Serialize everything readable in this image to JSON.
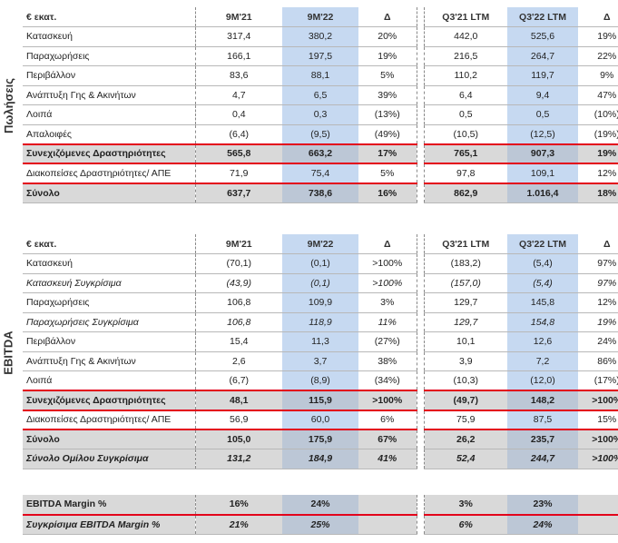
{
  "sales": {
    "side_label": "Πωλήσεις",
    "header": [
      "€ εκατ.",
      "9M'21",
      "9M'22",
      "Δ",
      "Q3'21 LTM",
      "Q3'22 LTM",
      "Δ"
    ],
    "rows": [
      {
        "cells": [
          "Κατασκευή",
          "317,4",
          "380,2",
          "20%",
          "442,0",
          "525,6",
          "19%"
        ]
      },
      {
        "cells": [
          "Παραχωρήσεις",
          "166,1",
          "197,5",
          "19%",
          "216,5",
          "264,7",
          "22%"
        ]
      },
      {
        "cells": [
          "Περιβάλλον",
          "83,6",
          "88,1",
          "5%",
          "110,2",
          "119,7",
          "9%"
        ]
      },
      {
        "cells": [
          "Ανάπτυξη Γης & Ακινήτων",
          "4,7",
          "6,5",
          "39%",
          "6,4",
          "9,4",
          "47%"
        ]
      },
      {
        "cells": [
          "Λοιπά",
          "0,4",
          "0,3",
          "(13%)",
          "0,5",
          "0,5",
          "(10%)"
        ]
      },
      {
        "cells": [
          "Απαλοιφές",
          "(6,4)",
          "(9,5)",
          "(49%)",
          "(10,5)",
          "(12,5)",
          "(19%)"
        ]
      },
      {
        "cells": [
          "Συνεχιζόμενες Δραστηριότητες",
          "565,8",
          "663,2",
          "17%",
          "765,1",
          "907,3",
          "19%"
        ],
        "total": true,
        "red_top": true,
        "red_bottom": true
      },
      {
        "cells": [
          "Διακοπείσες Δραστηριότητες/ ΑΠΕ",
          "71,9",
          "75,4",
          "5%",
          "97,8",
          "109,1",
          "12%"
        ]
      },
      {
        "cells": [
          "Σύνολο",
          "637,7",
          "738,6",
          "16%",
          "862,9",
          "1.016,4",
          "18%"
        ],
        "total": true,
        "red_top": true
      }
    ]
  },
  "ebitda": {
    "side_label": "EBITDA",
    "header": [
      "€ εκατ.",
      "9M'21",
      "9M'22",
      "Δ",
      "Q3'21 LTM",
      "Q3'22 LTM",
      "Δ"
    ],
    "rows": [
      {
        "cells": [
          "Κατασκευή",
          "(70,1)",
          "(0,1)",
          ">100%",
          "(183,2)",
          "(5,4)",
          "97%"
        ]
      },
      {
        "cells": [
          "Κατασκευή Συγκρίσιμα",
          "(43,9)",
          "(0,1)",
          ">100%",
          "(157,0)",
          "(5,4)",
          "97%"
        ],
        "italic": true
      },
      {
        "cells": [
          "Παραχωρήσεις",
          "106,8",
          "109,9",
          "3%",
          "129,7",
          "145,8",
          "12%"
        ]
      },
      {
        "cells": [
          "Παραχωρήσεις Συγκρίσιμα",
          "106,8",
          "118,9",
          "11%",
          "129,7",
          "154,8",
          "19%"
        ],
        "italic": true
      },
      {
        "cells": [
          "Περιβάλλον",
          "15,4",
          "11,3",
          "(27%)",
          "10,1",
          "12,6",
          "24%"
        ]
      },
      {
        "cells": [
          "Ανάπτυξη Γης & Ακινήτων",
          "2,6",
          "3,7",
          "38%",
          "3,9",
          "7,2",
          "86%"
        ]
      },
      {
        "cells": [
          "Λοιπά",
          "(6,7)",
          "(8,9)",
          "(34%)",
          "(10,3)",
          "(12,0)",
          "(17%)"
        ]
      },
      {
        "cells": [
          "Συνεχιζόμενες Δραστηριότητες",
          "48,1",
          "115,9",
          ">100%",
          "(49,7)",
          "148,2",
          ">100%"
        ],
        "total": true,
        "red_top": true,
        "red_bottom": true
      },
      {
        "cells": [
          "Διακοπείσες Δραστηριότητες/ ΑΠΕ",
          "56,9",
          "60,0",
          "6%",
          "75,9",
          "87,5",
          "15%"
        ]
      },
      {
        "cells": [
          "Σύνολο",
          "105,0",
          "175,9",
          "67%",
          "26,2",
          "235,7",
          ">100%"
        ],
        "total": true,
        "red_top": true
      },
      {
        "cells": [
          "Σύνολο Ομίλου Συγκρίσιμα",
          "131,2",
          "184,9",
          "41%",
          "52,4",
          "244,7",
          ">100%"
        ],
        "total": true,
        "bolditalic": true
      }
    ]
  },
  "margin": {
    "rows": [
      {
        "cells": [
          "EBITDA Margin %",
          "16%",
          "24%",
          "",
          "3%",
          "23%",
          ""
        ],
        "total": true
      },
      {
        "cells": [
          "Συγκρίσιμα EBITDA Margin %",
          "21%",
          "25%",
          "",
          "6%",
          "24%",
          ""
        ],
        "total": true,
        "bolditalic": true,
        "red_top": true
      }
    ]
  }
}
